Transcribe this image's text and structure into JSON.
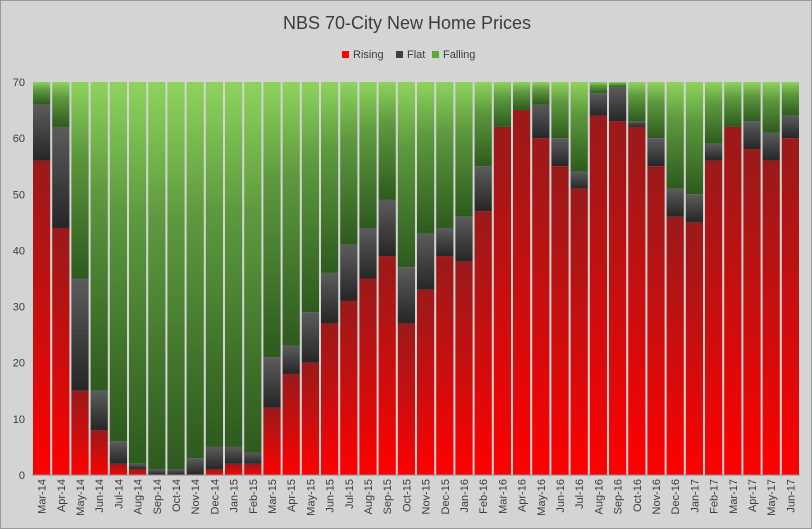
{
  "chart_data": {
    "type": "bar",
    "stacked": true,
    "title": "NBS 70-City New Home Prices",
    "xlabel": "",
    "ylabel": "",
    "ylim": [
      0,
      70
    ],
    "yticks": [
      0,
      10,
      20,
      30,
      40,
      50,
      60,
      70
    ],
    "legend_position": "top-center",
    "grid": false,
    "categories": [
      "Mar-14",
      "Apr-14",
      "May-14",
      "Jun-14",
      "Jul-14",
      "Aug-14",
      "Sep-14",
      "Oct-14",
      "Nov-14",
      "Dec-14",
      "Jan-15",
      "Feb-15",
      "Mar-15",
      "Apr-15",
      "May-15",
      "Jun-15",
      "Jul-15",
      "Aug-15",
      "Sep-15",
      "Oct-15",
      "Nov-15",
      "Dec-15",
      "Jan-16",
      "Feb-16",
      "Mar-16",
      "Apr-16",
      "May-16",
      "Jun-16",
      "Jul-16",
      "Aug-16",
      "Sep-16",
      "Oct-16",
      "Nov-16",
      "Dec-16",
      "Jan-17",
      "Feb-17",
      "Mar-17",
      "Apr-17",
      "May-17",
      "Jun-17"
    ],
    "series": [
      {
        "name": "Rising",
        "color": "#ff0000",
        "values": [
          56,
          44,
          15,
          8,
          2,
          1,
          0,
          0,
          0,
          1,
          2,
          2,
          12,
          18,
          20,
          27,
          31,
          35,
          39,
          27,
          33,
          39,
          38,
          47,
          62,
          65,
          60,
          55,
          51,
          64,
          63,
          62,
          55,
          46,
          45,
          56,
          62,
          58,
          56,
          60
        ]
      },
      {
        "name": "Flat",
        "color": "#404040",
        "values": [
          10,
          18,
          20,
          7,
          4,
          1,
          1,
          1,
          3,
          4,
          3,
          2,
          9,
          5,
          9,
          9,
          10,
          9,
          10,
          10,
          10,
          5,
          8,
          8,
          0,
          0,
          6,
          5,
          3,
          4,
          6,
          1,
          5,
          5,
          5,
          3,
          0,
          5,
          5,
          4
        ]
      },
      {
        "name": "Falling",
        "color": "#5aab32",
        "values": [
          4,
          8,
          35,
          55,
          64,
          68,
          69,
          69,
          67,
          65,
          65,
          66,
          49,
          47,
          41,
          34,
          29,
          26,
          21,
          33,
          27,
          26,
          24,
          15,
          8,
          5,
          4,
          10,
          16,
          2,
          1,
          7,
          10,
          19,
          20,
          11,
          8,
          7,
          9,
          6
        ]
      }
    ]
  }
}
